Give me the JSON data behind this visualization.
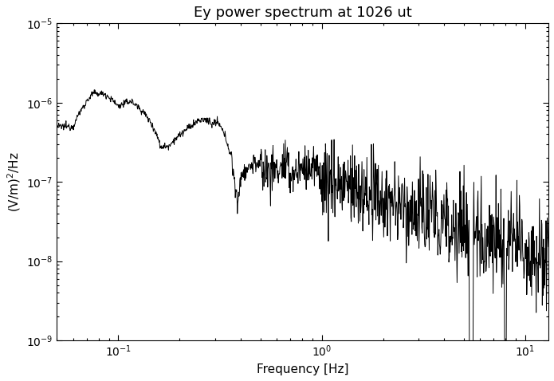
{
  "title": "Ey power spectrum at 1026 ut",
  "xlabel": "Frequency [Hz]",
  "ylabel": "(V/m)$^2$/Hz",
  "xlim": [
    0.05,
    13
  ],
  "ylim": [
    1e-09,
    1e-05
  ],
  "line_color": "#000000",
  "line_width": 0.7,
  "background_color": "#ffffff",
  "title_fontsize": 13,
  "label_fontsize": 11,
  "tick_labelsize": 10
}
